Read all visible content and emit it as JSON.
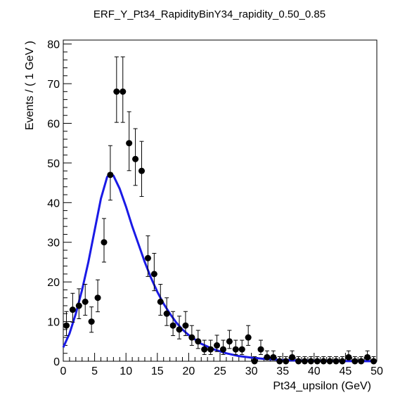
{
  "chart_data": {
    "type": "scatter",
    "title": "ERF_Y_Pt34_RapidityBinY34_rapidity_0.50_0.85",
    "xlabel": "Pt34_upsilon (GeV)",
    "ylabel": "Events / ( 1 GeV )",
    "xlim": [
      0,
      50
    ],
    "ylim": [
      0,
      81
    ],
    "x_ticks": [
      0,
      5,
      10,
      15,
      20,
      25,
      30,
      35,
      40,
      45,
      50
    ],
    "y_ticks": [
      0,
      10,
      20,
      30,
      40,
      50,
      60,
      70,
      80
    ],
    "grid": false,
    "legend": "none",
    "colors": {
      "points": "#000000",
      "fit": "#1a1ae6"
    },
    "series": [
      {
        "kind": "points_with_errors",
        "x": [
          0.5,
          1.5,
          2.5,
          3.5,
          4.5,
          5.5,
          6.5,
          7.5,
          8.5,
          9.5,
          10.5,
          11.5,
          12.5,
          13.5,
          14.5,
          15.5,
          16.5,
          17.5,
          18.5,
          19.5,
          20.5,
          21.5,
          22.5,
          23.5,
          24.5,
          25.5,
          26.5,
          27.5,
          28.5,
          29.5,
          30.5,
          31.5,
          32.5,
          33.5,
          34.5,
          35.5,
          36.5,
          37.5,
          38.5,
          39.5,
          40.5,
          41.5,
          42.5,
          43.5,
          44.5,
          45.5,
          46.5,
          47.5,
          48.5,
          49.5
        ],
        "y": [
          9,
          13,
          14,
          15,
          10,
          16,
          30,
          47,
          68,
          68,
          55,
          51,
          48,
          26,
          22,
          15,
          12,
          9,
          8,
          9,
          6,
          5,
          3,
          3,
          4,
          3,
          5,
          3,
          3,
          6,
          0,
          3,
          1,
          1,
          0,
          0,
          1,
          0,
          0,
          0,
          0,
          0,
          0,
          0,
          0,
          1,
          0,
          0,
          1,
          0
        ]
      },
      {
        "kind": "fit_curve",
        "x": [
          0,
          1,
          2,
          3,
          4,
          5,
          6,
          7,
          7.5,
          8,
          9,
          10,
          11,
          12,
          13,
          14,
          15,
          16,
          17,
          18,
          19,
          20,
          22,
          24,
          26,
          28,
          30,
          32,
          35,
          38,
          42,
          46,
          50
        ],
        "y": [
          3.5,
          7,
          12,
          18,
          25,
          33,
          41,
          46.5,
          47.2,
          46.8,
          43.5,
          39,
          34,
          29.5,
          25,
          21,
          17.5,
          14.5,
          12,
          9.8,
          8,
          6.6,
          4.4,
          3,
          2,
          1.3,
          0.9,
          0.6,
          0.3,
          0.15,
          0.06,
          0.02,
          0.01
        ]
      }
    ]
  }
}
